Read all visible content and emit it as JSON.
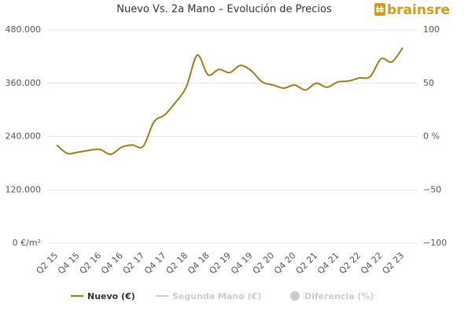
{
  "chart_data": {
    "type": "line",
    "title": "Nuevo Vs. 2a Mano – Evolución de Precios",
    "logo": "brainsre",
    "categories": [
      "Q2 15",
      null,
      "Q4 15",
      null,
      "Q2 16",
      null,
      "Q4 16",
      null,
      "Q2 17",
      null,
      "Q4 17",
      null,
      "Q2 18",
      null,
      "Q4 18",
      null,
      "Q2 19",
      null,
      "Q4 19",
      null,
      "Q2 20",
      null,
      "Q4 20",
      null,
      "Q2 21",
      null,
      "Q4 21",
      null,
      "Q2 22",
      null,
      "Q4 22",
      null,
      "Q2 23"
    ],
    "series": [
      {
        "name": "Nuevo (€)",
        "color": "#9c7f1c",
        "values": [
          221000,
          202000,
          205000,
          209000,
          211000,
          200000,
          216000,
          221000,
          218000,
          273000,
          289000,
          317000,
          352000,
          423000,
          379000,
          391000,
          384000,
          400000,
          388000,
          363000,
          356000,
          349000,
          356000,
          345000,
          360000,
          351000,
          363000,
          365000,
          372000,
          375000,
          415000,
          408000,
          440000
        ]
      },
      {
        "name": "Segunda Mano (€)",
        "color": "#cccccc",
        "visible": false
      },
      {
        "name": "Diferencia (%)",
        "color": "#cccccc",
        "visible": false,
        "axis": "y2"
      }
    ],
    "ylim": [
      0,
      480000
    ],
    "yticks": [
      {
        "value": 0,
        "label": "0 €/m²"
      },
      {
        "value": 120000,
        "label": "120.000"
      },
      {
        "value": 240000,
        "label": "240.000"
      },
      {
        "value": 360000,
        "label": "360.000"
      },
      {
        "value": 480000,
        "label": "480.000"
      }
    ],
    "y2lim": [
      -100,
      100
    ],
    "y2ticks": [
      {
        "value": -100,
        "label": "−100"
      },
      {
        "value": -50,
        "label": "−50"
      },
      {
        "value": 0,
        "label": "0 %"
      },
      50,
      100
    ],
    "grid": true
  }
}
